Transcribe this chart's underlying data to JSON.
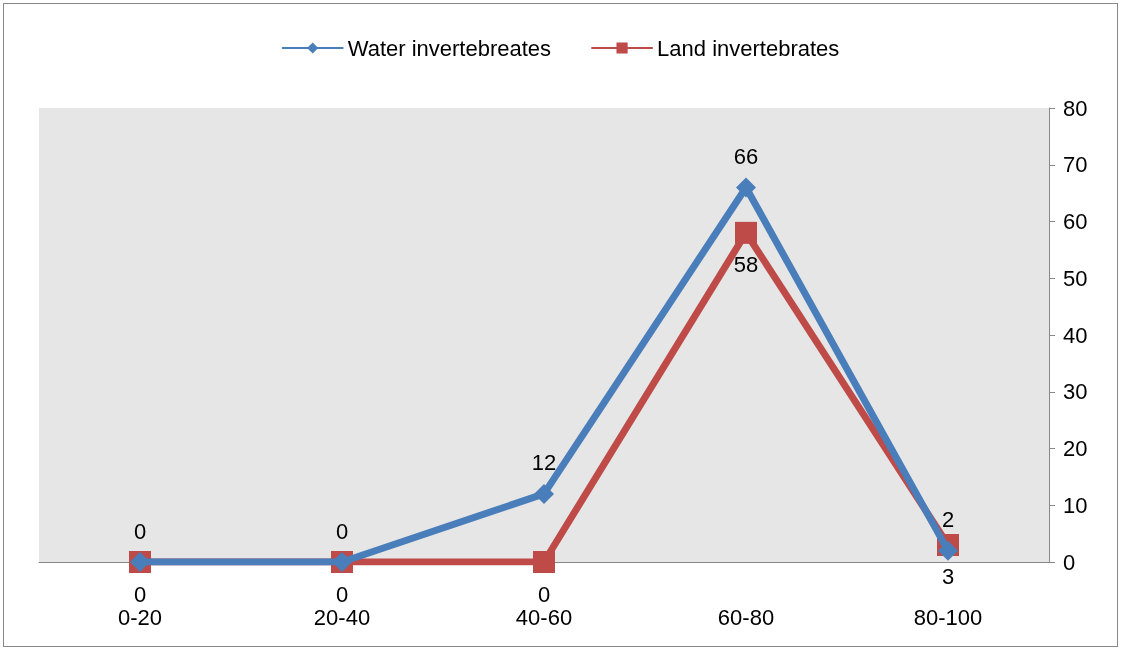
{
  "chart_data": {
    "type": "line",
    "categories": [
      "0-20",
      "20-40",
      "40-60",
      "60-80",
      "80-100"
    ],
    "series": [
      {
        "name": "Water invertebreates",
        "color": "#4a7ebb",
        "marker": "diamond",
        "values": [
          0,
          0,
          12,
          66,
          2
        ]
      },
      {
        "name": "Land invertebrates",
        "color": "#be4b48",
        "marker": "square",
        "values": [
          0,
          0,
          0,
          58,
          3
        ]
      }
    ],
    "ylim": [
      0,
      80
    ],
    "yticks": [
      0,
      10,
      20,
      30,
      40,
      50,
      60,
      70,
      80
    ],
    "grid": false,
    "legend": "top",
    "data_labels": true,
    "line_style": "solid"
  }
}
